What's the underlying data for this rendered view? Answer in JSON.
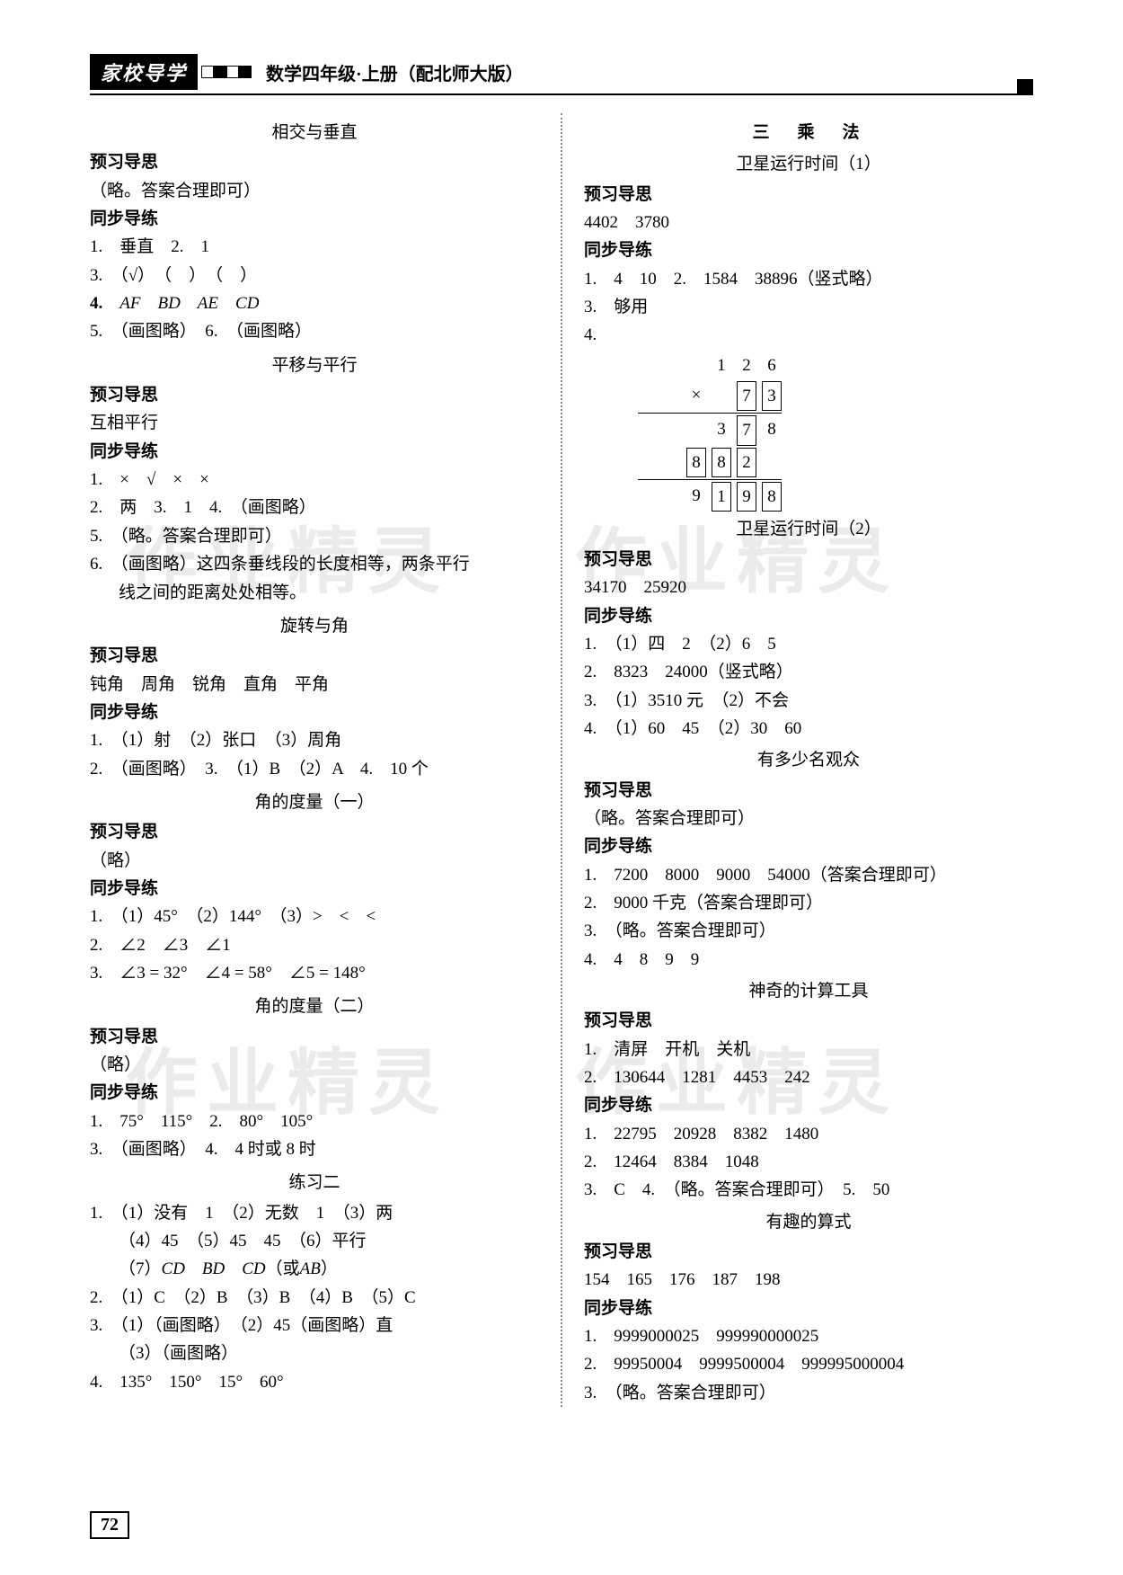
{
  "header": {
    "logo": "家校导学",
    "title": "数学四年级·上册（配北师大版）"
  },
  "pageNumber": "72",
  "watermark": "作业精灵",
  "left": {
    "s1": {
      "title": "相交与垂直",
      "h1": "预习导思",
      "p1": "（略。答案合理即可）",
      "h2": "同步导练",
      "l1": "1.　垂直　2.　1",
      "l2": "3.　（√）　（　）　（　）",
      "l3a": "4.",
      "l3b": "AF　BD　AE　CD",
      "l4": "5.　（画图略）　6.　（画图略）"
    },
    "s2": {
      "title": "平移与平行",
      "h1": "预习导思",
      "p1": "互相平行",
      "h2": "同步导练",
      "l1": "1.　×　√　×　×",
      "l2": "2.　两　3.　1　4.　（画图略）",
      "l3": "5.　（略。答案合理即可）",
      "l4": "6.　（画图略）这四条垂线段的长度相等，两条平行",
      "l4b": "线之间的距离处处相等。"
    },
    "s3": {
      "title": "旋转与角",
      "h1": "预习导思",
      "p1": "钝角　周角　锐角　直角　平角",
      "h2": "同步导练",
      "l1": "1.　（1）射　（2）张口　（3）周角",
      "l2": "2.　（画图略）　3.　（1）B　（2）A　4.　10 个"
    },
    "s4": {
      "title": "角的度量（一）",
      "h1": "预习导思",
      "p1": "（略）",
      "h2": "同步导练",
      "l1": "1.　（1）45°　（2）144°　（3）>　<　<",
      "l2": "2.　∠2　∠3　∠1",
      "l3": "3.　∠3 = 32°　∠4 = 58°　∠5 = 148°"
    },
    "s5": {
      "title": "角的度量（二）",
      "h1": "预习导思",
      "p1": "（略）",
      "h2": "同步导练",
      "l1": "1.　75°　115°　2.　80°　105°",
      "l2": "3.　（画图略）　4.　4 时或 8 时"
    },
    "s6": {
      "title": "练习二",
      "l1": "1.　（1）没有　1　（2）无数　1　（3）两",
      "l2": "（4）45　（5）45　45　（6）平行",
      "l3a": "（7）",
      "l3b": "CD　BD　CD",
      "l3c": "（或",
      "l3d": "AB",
      "l3e": "）",
      "l4": "2.　（1）C　（2）B　（3）B　（4）B　（5）C",
      "l5": "3.　（1）（画图略）　（2）45（画图略）直",
      "l6": "（3）（画图略）",
      "l7": "4.　135°　150°　15°　60°"
    }
  },
  "right": {
    "chapter": "三　乘　法",
    "s1": {
      "title": "卫星运行时间（1）",
      "h1": "预习导思",
      "p1": "4402　3780",
      "h2": "同步导练",
      "l1": "1.　4　10　2.　1584　38896（竖式略）",
      "l2": "3.　够用",
      "l3": "4.",
      "calc": {
        "r1": [
          "",
          "1",
          "2",
          "6"
        ],
        "r2": [
          "×",
          "",
          "7",
          "3"
        ],
        "r3": [
          "",
          "3",
          "7",
          "8"
        ],
        "r4": [
          "8",
          "8",
          "2",
          ""
        ],
        "r5": [
          "9",
          "1",
          "9",
          "8"
        ],
        "boxed_r2": [
          false,
          false,
          true,
          true
        ],
        "boxed_r3": [
          false,
          false,
          true,
          false
        ],
        "boxed_r4": [
          true,
          true,
          true,
          false
        ],
        "boxed_r5": [
          false,
          true,
          true,
          true
        ]
      }
    },
    "s2": {
      "title": "卫星运行时间（2）",
      "h1": "预习导思",
      "p1": "34170　25920",
      "h2": "同步导练",
      "l1": "1.　（1）四　2　（2）6　5",
      "l2": "2.　8323　24000（竖式略）",
      "l3": "3.　（1）3510 元　（2）不会",
      "l4": "4.　（1）60　45　（2）30　60"
    },
    "s3": {
      "title": "有多少名观众",
      "h1": "预习导思",
      "p1": "（略。答案合理即可）",
      "h2": "同步导练",
      "l1": "1.　7200　8000　9000　54000（答案合理即可）",
      "l2": "2.　9000 千克（答案合理即可）",
      "l3": "3.　（略。答案合理即可）",
      "l4": "4.　4　8　9　9"
    },
    "s4": {
      "title": "神奇的计算工具",
      "h1": "预习导思",
      "p1": "1.　清屏　开机　关机",
      "p2": "2.　130644　1281　4453　242",
      "h2": "同步导练",
      "l1": "1.　22795　20928　8382　1480",
      "l2": "2.　12464　8384　1048",
      "l3": "3.　C　4.　（略。答案合理即可）　5.　50"
    },
    "s5": {
      "title": "有趣的算式",
      "h1": "预习导思",
      "p1": "154　165　176　187　198",
      "h2": "同步导练",
      "l1": "1.　9999000025　999990000025",
      "l2": "2.　99950004　9999500004　999995000004",
      "l3": "3.　（略。答案合理即可）"
    }
  }
}
